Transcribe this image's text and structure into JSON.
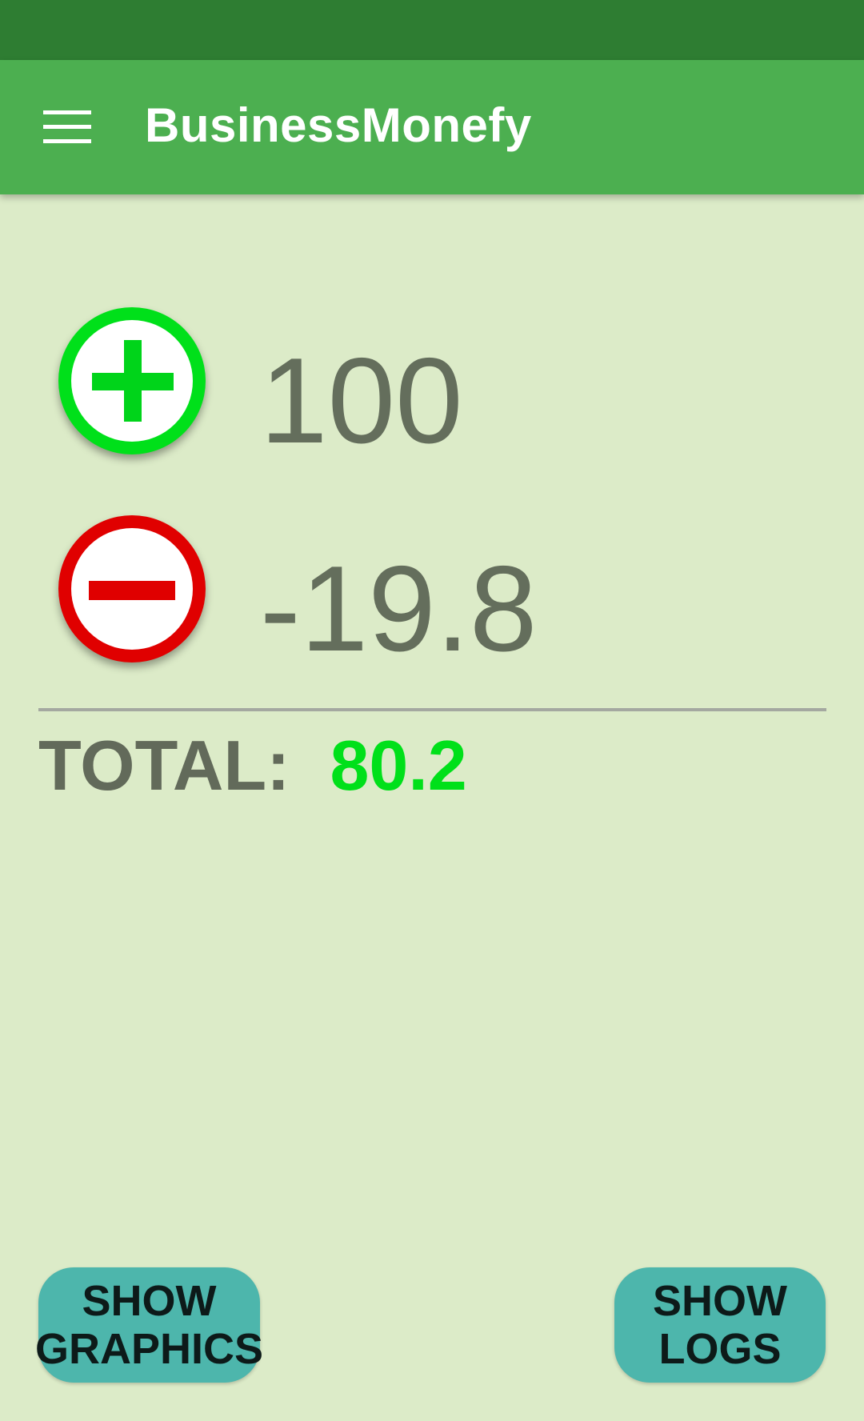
{
  "app_bar": {
    "title": "BusinessMonefy",
    "menu_icon": "hamburger-menu-icon"
  },
  "income": {
    "icon": "plus-circle-icon",
    "icon_color": "#00e01a",
    "amount": "100"
  },
  "expense": {
    "icon": "minus-circle-icon",
    "icon_color": "#e00000",
    "amount": "-19.8"
  },
  "total": {
    "label": "TOTAL:",
    "value": "80.2",
    "value_color": "#00e01a"
  },
  "buttons": {
    "graphics": {
      "line1": "SHOW",
      "line2": "GRAPHICS"
    },
    "logs": {
      "line1": "SHOW",
      "line2": "LOGS"
    }
  },
  "colors": {
    "status_bar": "#2e7d32",
    "app_bar": "#4caf50",
    "background": "#dcebc8",
    "button": "#4db6ac"
  }
}
